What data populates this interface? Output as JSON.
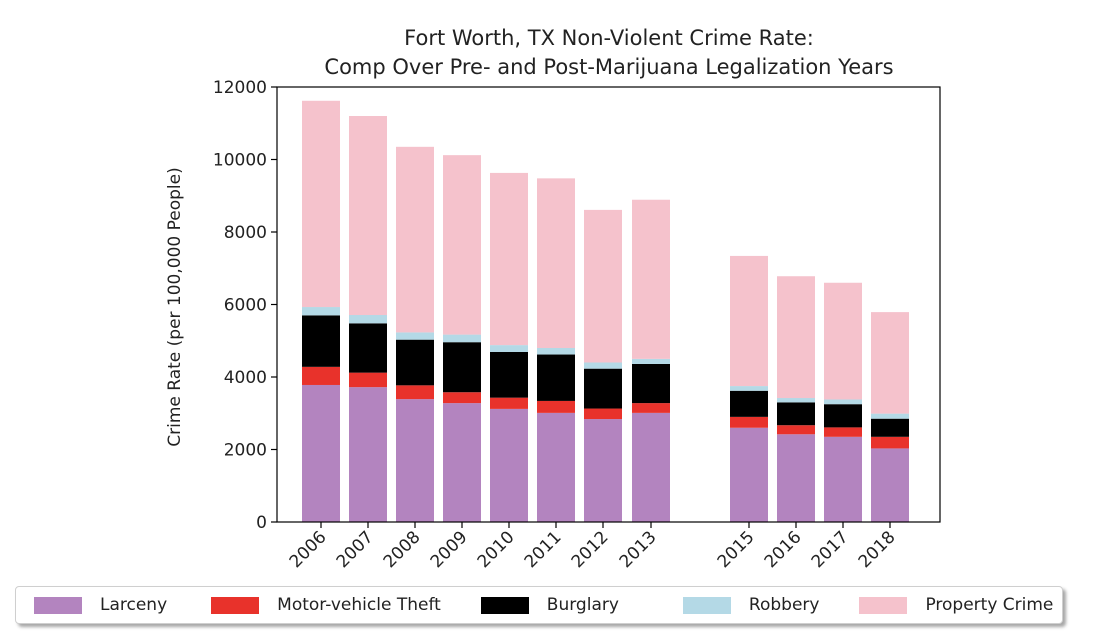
{
  "chart_data": {
    "type": "bar",
    "stacked": true,
    "title": "Fort Worth, TX Non-Violent Crime Rate:",
    "subtitle": "Comp Over Pre- and Post-Marijuana Legalization Years",
    "xlabel": "",
    "ylabel": "Crime Rate (per 100,000 People)",
    "ylim": [
      0,
      12000
    ],
    "yticks": [
      "0",
      "2000",
      "4000",
      "6000",
      "8000",
      "10000",
      "12000"
    ],
    "categories": [
      "2006",
      "2007",
      "2008",
      "2009",
      "2010",
      "2011",
      "2012",
      "2013",
      "2015",
      "2016",
      "2017",
      "2018"
    ],
    "grid": false,
    "legend_position": "bottom",
    "series": [
      {
        "name": "Larceny",
        "color": "#b384bf",
        "values": [
          3780,
          3720,
          3390,
          3280,
          3120,
          3010,
          2840,
          3010,
          2600,
          2420,
          2350,
          2030
        ]
      },
      {
        "name": "Motor-vehicle Theft",
        "color": "#e8322b",
        "values": [
          500,
          400,
          380,
          300,
          310,
          330,
          290,
          270,
          300,
          250,
          260,
          320
        ]
      },
      {
        "name": "Burglary",
        "color": "#000000",
        "values": [
          1420,
          1360,
          1260,
          1380,
          1260,
          1280,
          1100,
          1080,
          720,
          630,
          640,
          500
        ]
      },
      {
        "name": "Robbery",
        "color": "#b4d9e6",
        "values": [
          230,
          230,
          200,
          210,
          190,
          180,
          170,
          140,
          130,
          120,
          130,
          140
        ]
      },
      {
        "name": "Property Crime",
        "color": "#f5c2cc",
        "values": [
          5690,
          5490,
          5120,
          4950,
          4750,
          4680,
          4210,
          4390,
          3590,
          3360,
          3220,
          2800
        ]
      }
    ]
  }
}
